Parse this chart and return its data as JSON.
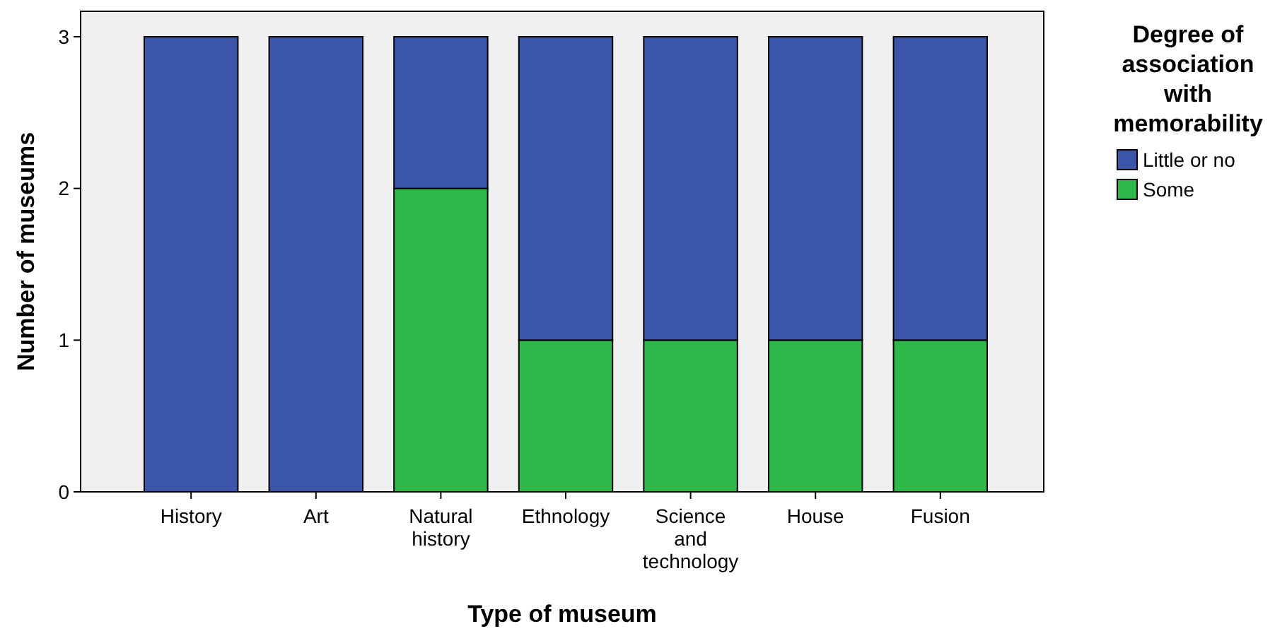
{
  "chart_data": {
    "type": "bar",
    "stacked": true,
    "xlabel": "Type of museum",
    "ylabel": "Number of museums",
    "legend_title": "Degree of association with memorability",
    "legend": "right",
    "categories": [
      "History",
      "Art",
      "Natural history",
      "Ethnology",
      "Science and technology",
      "House",
      "Fusion"
    ],
    "series": [
      {
        "name": "Some",
        "color": "#2fb84a",
        "values": [
          0,
          0,
          2,
          1,
          1,
          1,
          1
        ]
      },
      {
        "name": "Little or no",
        "color": "#3b56a8",
        "values": [
          3,
          3,
          1,
          2,
          2,
          2,
          2
        ]
      }
    ],
    "ylim": [
      0,
      3
    ],
    "yticks": [
      0,
      1,
      2,
      3
    ],
    "grid": false
  }
}
